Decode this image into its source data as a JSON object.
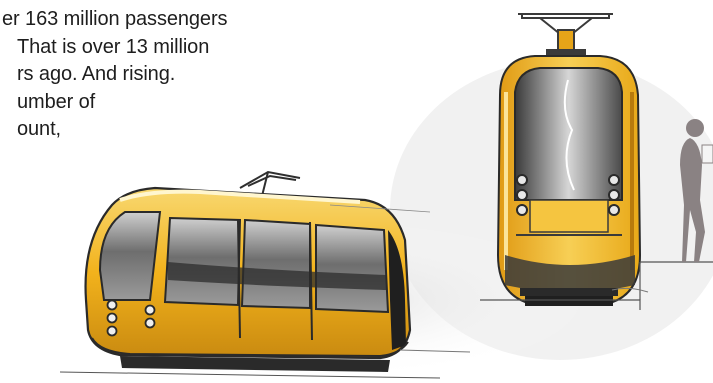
{
  "article": {
    "lines": [
      "er 163 million passengers",
      "That is over 13 million",
      "rs ago. And rising.",
      "umber of",
      "ount,"
    ]
  },
  "illustration": {
    "subject": "yellow-tram-concept-sketch",
    "colors": {
      "body_yellow": "#f2b21c",
      "body_light": "#f7d56a",
      "glass_dark": "#3c3c3c",
      "outline": "#2a2a2a",
      "silhouette": "#8a8283"
    }
  }
}
